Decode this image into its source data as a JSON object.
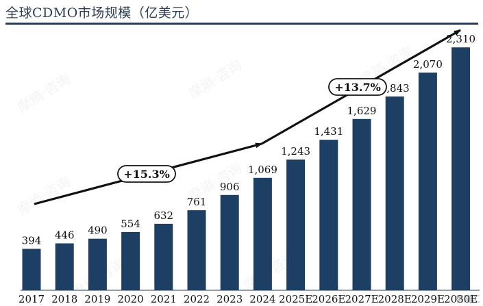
{
  "title": "全球CDMO市场规模（亿美元）",
  "watermark": "摩熵·咨询",
  "corner_mark": "格隆汇",
  "chart_data": {
    "type": "bar",
    "categories": [
      "2017",
      "2018",
      "2019",
      "2020",
      "2021",
      "2022",
      "2023",
      "2024",
      "2025E",
      "2026E",
      "2027E",
      "2028E",
      "2029E",
      "2030E"
    ],
    "values": [
      394,
      446,
      490,
      554,
      632,
      761,
      906,
      1069,
      1243,
      1431,
      1629,
      1843,
      2070,
      2310
    ],
    "value_labels": [
      "394",
      "446",
      "490",
      "554",
      "632",
      "761",
      "906",
      "1,069",
      "1,243",
      "1,431",
      "1,629",
      "1,843",
      "2,070",
      "2,310"
    ],
    "bar_color": "#1d3f64",
    "ylim": [
      0,
      2500
    ],
    "grid": false,
    "annotations": [
      {
        "label": "+15.3%",
        "from": "2017",
        "to": "2024"
      },
      {
        "label": "+13.7%",
        "from": "2024",
        "to": "2030E"
      }
    ]
  }
}
